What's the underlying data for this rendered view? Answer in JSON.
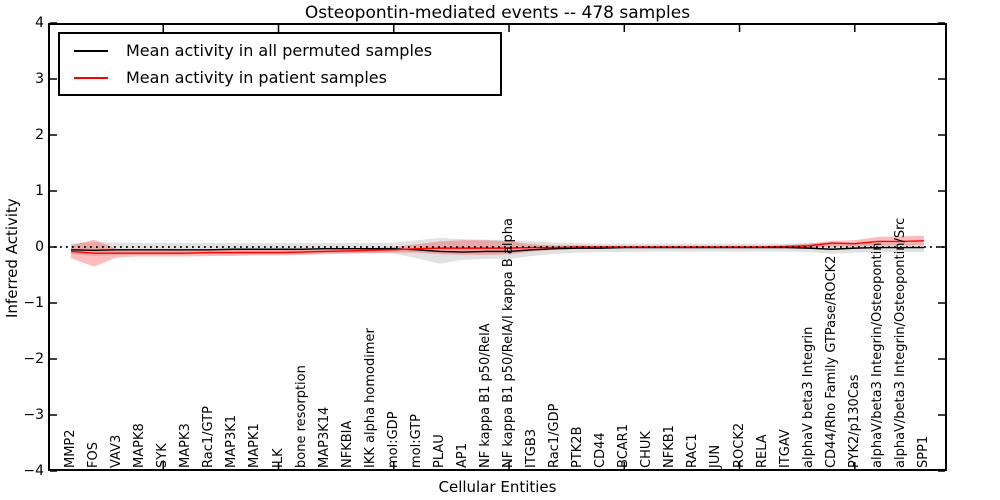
{
  "title": "Osteopontin-mediated events -- 478 samples",
  "legend": {
    "position": "upper left",
    "items": [
      {
        "label": "Mean activity in all permuted samples",
        "color": "#000000"
      },
      {
        "label": "Mean activity in patient samples",
        "color": "#ff0000"
      }
    ]
  },
  "axes": {
    "yticks": [
      -4,
      -3,
      -2,
      -1,
      0,
      1,
      2,
      3,
      4
    ],
    "ytick_labels": [
      "−4",
      "−3",
      "−2",
      "−1",
      "0",
      "1",
      "2",
      "3",
      "4"
    ],
    "xtick_units": [
      5,
      10,
      15,
      20,
      25,
      30,
      35
    ]
  },
  "chart_data": {
    "type": "line",
    "title": "Osteopontin-mediated events -- 478 samples",
    "xlabel": "Cellular Entities",
    "ylabel": "Inferred Activity",
    "ylim": [
      -4,
      4
    ],
    "grid": false,
    "legend_position": "upper left",
    "categories": [
      "MMP2",
      "FOS",
      "VAV3",
      "MAPK8",
      "SYK",
      "MAPK3",
      "Rac1/GTP",
      "MAP3K1",
      "MAPK1",
      "ILK",
      "bone resorption",
      "MAP3K14",
      "NFKBIA",
      "IKK alpha homodimer",
      "mol:GDP",
      "mol:GTP",
      "PLAU",
      "AP1",
      "NF kappa B1 p50/RelA",
      "NF kappa B1 p50/RelA/I kappa B alpha",
      "ITGB3",
      "Rac1/GDP",
      "PTK2B",
      "CD44",
      "BCAR1",
      "CHUK",
      "NFKB1",
      "RAC1",
      "JUN",
      "ROCK2",
      "RELA",
      "ITGAV",
      "alphaV beta3 Integrin",
      "CD44/Rho Family GTPase/ROCK2",
      "PYK2/p130Cas",
      "alphaV/beta3 Integrin/Osteopontin",
      "alphaV/beta3 Integrin/Osteopontin/Src",
      "SPP1"
    ],
    "series": [
      {
        "name": "Mean activity in all permuted samples",
        "color": "#000000",
        "style": "solid",
        "values": [
          -0.05,
          -0.06,
          -0.05,
          -0.05,
          -0.05,
          -0.05,
          -0.05,
          -0.04,
          -0.04,
          -0.04,
          -0.04,
          -0.03,
          -0.03,
          -0.03,
          -0.03,
          -0.05,
          -0.08,
          -0.09,
          -0.08,
          -0.08,
          -0.05,
          -0.03,
          -0.02,
          -0.02,
          -0.01,
          -0.01,
          -0.01,
          -0.01,
          -0.01,
          -0.01,
          -0.01,
          -0.01,
          -0.02,
          -0.04,
          -0.02,
          -0.01,
          -0.01,
          -0.01
        ]
      },
      {
        "name": "Mean activity in patient samples",
        "color": "#ff0000",
        "style": "solid",
        "values": [
          -0.08,
          -0.11,
          -0.11,
          -0.11,
          -0.11,
          -0.11,
          -0.1,
          -0.1,
          -0.1,
          -0.1,
          -0.09,
          -0.08,
          -0.07,
          -0.06,
          -0.05,
          -0.03,
          -0.02,
          -0.02,
          -0.02,
          -0.02,
          -0.01,
          -0.01,
          0.0,
          0.0,
          0.0,
          0.0,
          0.0,
          0.0,
          0.0,
          0.0,
          0.0,
          0.01,
          0.02,
          0.07,
          0.06,
          0.1,
          0.1,
          0.11
        ]
      }
    ],
    "bands": [
      {
        "name": "permuted samples activity range",
        "color": "#aaaaaa",
        "opacity": 0.35,
        "upper": [
          0.06,
          0.09,
          0.08,
          0.07,
          0.07,
          0.07,
          0.07,
          0.07,
          0.07,
          0.07,
          0.07,
          0.07,
          0.07,
          0.07,
          0.08,
          0.12,
          0.16,
          0.14,
          0.13,
          0.12,
          0.1,
          0.08,
          0.07,
          0.06,
          0.06,
          0.06,
          0.06,
          0.06,
          0.06,
          0.06,
          0.06,
          0.06,
          0.07,
          0.08,
          0.07,
          0.06,
          0.06,
          0.06
        ],
        "lower": [
          -0.13,
          -0.16,
          -0.15,
          -0.14,
          -0.14,
          -0.13,
          -0.13,
          -0.13,
          -0.12,
          -0.12,
          -0.12,
          -0.11,
          -0.11,
          -0.11,
          -0.12,
          -0.2,
          -0.3,
          -0.23,
          -0.21,
          -0.21,
          -0.16,
          -0.12,
          -0.1,
          -0.09,
          -0.09,
          -0.08,
          -0.08,
          -0.08,
          -0.08,
          -0.08,
          -0.08,
          -0.08,
          -0.09,
          -0.12,
          -0.1,
          -0.09,
          -0.09,
          -0.09
        ]
      },
      {
        "name": "patient samples activity range",
        "color": "#ff2222",
        "opacity": 0.3,
        "upper": [
          0.03,
          0.13,
          -0.04,
          -0.05,
          -0.05,
          -0.05,
          -0.05,
          -0.05,
          -0.05,
          -0.05,
          -0.04,
          -0.04,
          -0.03,
          -0.02,
          0.0,
          0.05,
          0.1,
          0.12,
          0.12,
          0.1,
          0.05,
          0.03,
          0.03,
          0.02,
          0.02,
          0.02,
          0.02,
          0.02,
          0.02,
          0.02,
          0.02,
          0.03,
          0.06,
          0.11,
          0.12,
          0.18,
          0.19,
          0.2
        ],
        "lower": [
          -0.2,
          -0.35,
          -0.18,
          -0.17,
          -0.17,
          -0.17,
          -0.16,
          -0.16,
          -0.15,
          -0.15,
          -0.14,
          -0.13,
          -0.12,
          -0.11,
          -0.1,
          -0.1,
          -0.13,
          -0.14,
          -0.14,
          -0.13,
          -0.08,
          -0.05,
          -0.03,
          -0.02,
          -0.02,
          -0.02,
          -0.02,
          -0.02,
          -0.02,
          -0.02,
          -0.02,
          -0.02,
          -0.01,
          0.01,
          0.01,
          0.03,
          0.03,
          0.04
        ]
      }
    ],
    "zero_line": {
      "y": 0,
      "style": "dotted",
      "color": "#000000"
    }
  }
}
